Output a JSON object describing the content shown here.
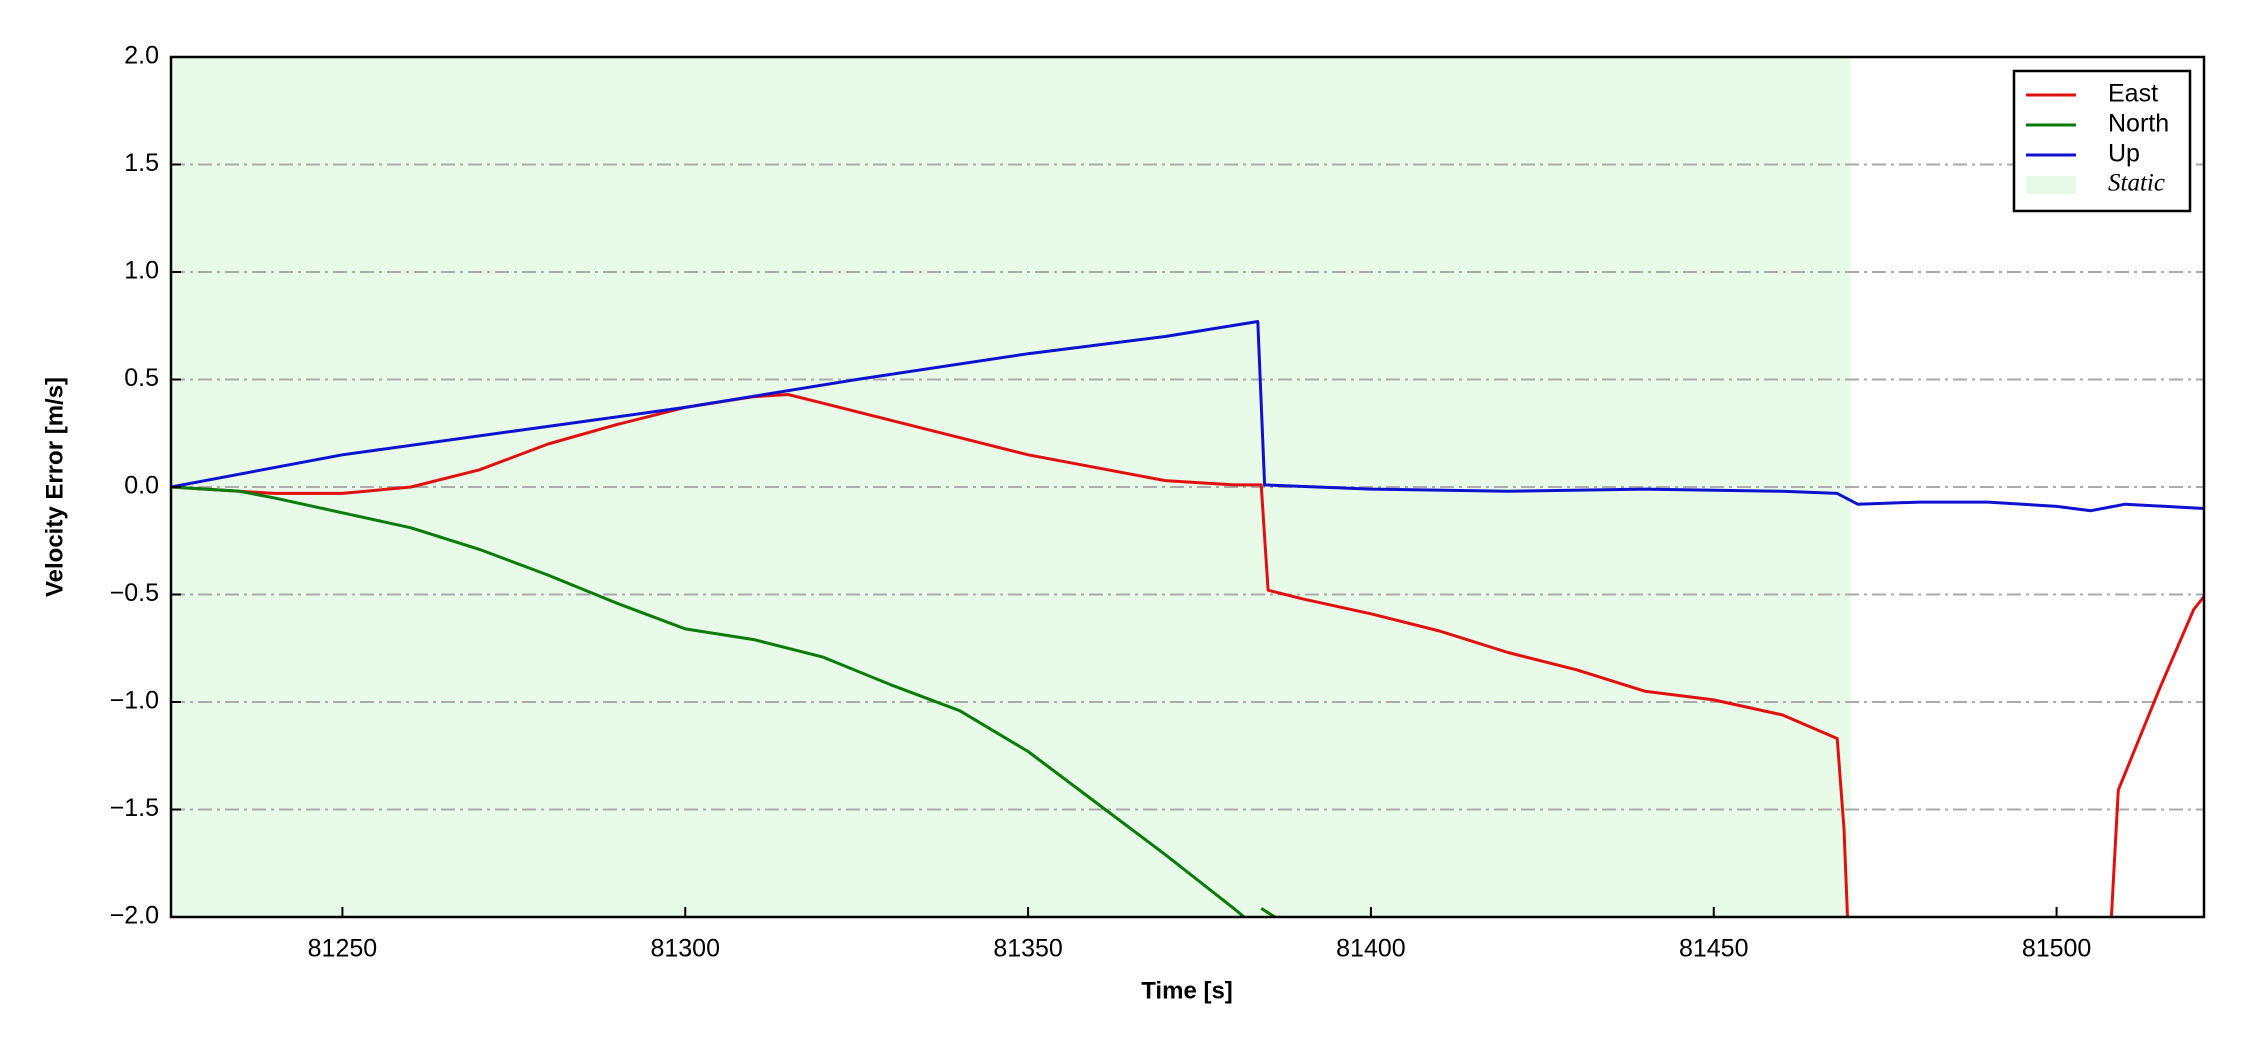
{
  "chart_data": {
    "type": "line",
    "xlabel": "Time [s]",
    "ylabel": "Velocity Error [m/s]",
    "xlim": [
      81225,
      81521.5
    ],
    "ylim": [
      -2,
      2
    ],
    "xticks": [
      81250,
      81300,
      81350,
      81400,
      81450,
      81500
    ],
    "yticks": [
      {
        "value": 2,
        "label": "2.0"
      },
      1.5,
      {
        "value": 1,
        "label": "1.0"
      },
      0.5,
      {
        "value": 0,
        "label": "0.0"
      },
      {
        "value": -0.5,
        "label": "−0.5"
      },
      {
        "value": -1,
        "label": "−1.0"
      },
      {
        "value": -1.5,
        "label": "−1.5"
      },
      {
        "value": -2,
        "label": "−2.0"
      }
    ],
    "grid": true,
    "legend": "upper right",
    "spans": [
      {
        "name": "Static",
        "color": "#e8fbe8",
        "xmin": 81225,
        "xmax": 81470
      }
    ],
    "series": [
      {
        "name": "East",
        "color": "#e01010",
        "x": [
          81225,
          81240,
          81250,
          81260,
          81270,
          81280,
          81290,
          81300,
          81310,
          81315,
          81320,
          81330,
          81340,
          81350,
          81360,
          81370,
          81380,
          81384,
          81385,
          81390,
          81400,
          81410,
          81420,
          81430,
          81440,
          81450,
          81460,
          81468,
          81469,
          81469.5,
          81490,
          81508,
          81509,
          81515,
          81520,
          81521.5
        ],
        "values": [
          0,
          -0.03,
          -0.03,
          0,
          0.08,
          0.2,
          0.29,
          0.37,
          0.42,
          0.43,
          0.39,
          0.31,
          0.23,
          0.15,
          0.09,
          0.03,
          0.01,
          0.01,
          -0.48,
          -0.52,
          -0.59,
          -0.67,
          -0.77,
          -0.85,
          -0.95,
          -0.99,
          -1.06,
          -1.17,
          -1.59,
          -2,
          null,
          -2,
          -1.41,
          -0.94,
          -0.57,
          -0.51
        ]
      },
      {
        "name": "North",
        "color": "#0a7a0a",
        "x": [
          81225,
          81235,
          81240,
          81250,
          81260,
          81270,
          81280,
          81290,
          81300,
          81310,
          81320,
          81330,
          81340,
          81350,
          81360,
          81370,
          81380,
          81381.5,
          81383,
          81384,
          81386
        ],
        "values": [
          0,
          -0.02,
          -0.05,
          -0.12,
          -0.19,
          -0.29,
          -0.41,
          -0.54,
          -0.66,
          -0.71,
          -0.79,
          -0.92,
          -1.04,
          -1.23,
          -1.47,
          -1.71,
          -1.96,
          -2,
          null,
          -1.96,
          -2
        ]
      },
      {
        "name": "Up",
        "color": "#1010d0",
        "x": [
          81225,
          81250,
          81275,
          81300,
          81325,
          81350,
          81370,
          81383.5,
          81384.5,
          81400,
          81420,
          81440,
          81460,
          81468,
          81471,
          81480,
          81490,
          81500,
          81505,
          81510,
          81521.5
        ],
        "values": [
          0,
          0.15,
          0.26,
          0.37,
          0.5,
          0.62,
          0.7,
          0.77,
          0.01,
          -0.01,
          -0.02,
          -0.01,
          -0.02,
          -0.03,
          -0.08,
          -0.07,
          -0.07,
          -0.09,
          -0.11,
          -0.08,
          -0.1
        ]
      }
    ]
  }
}
